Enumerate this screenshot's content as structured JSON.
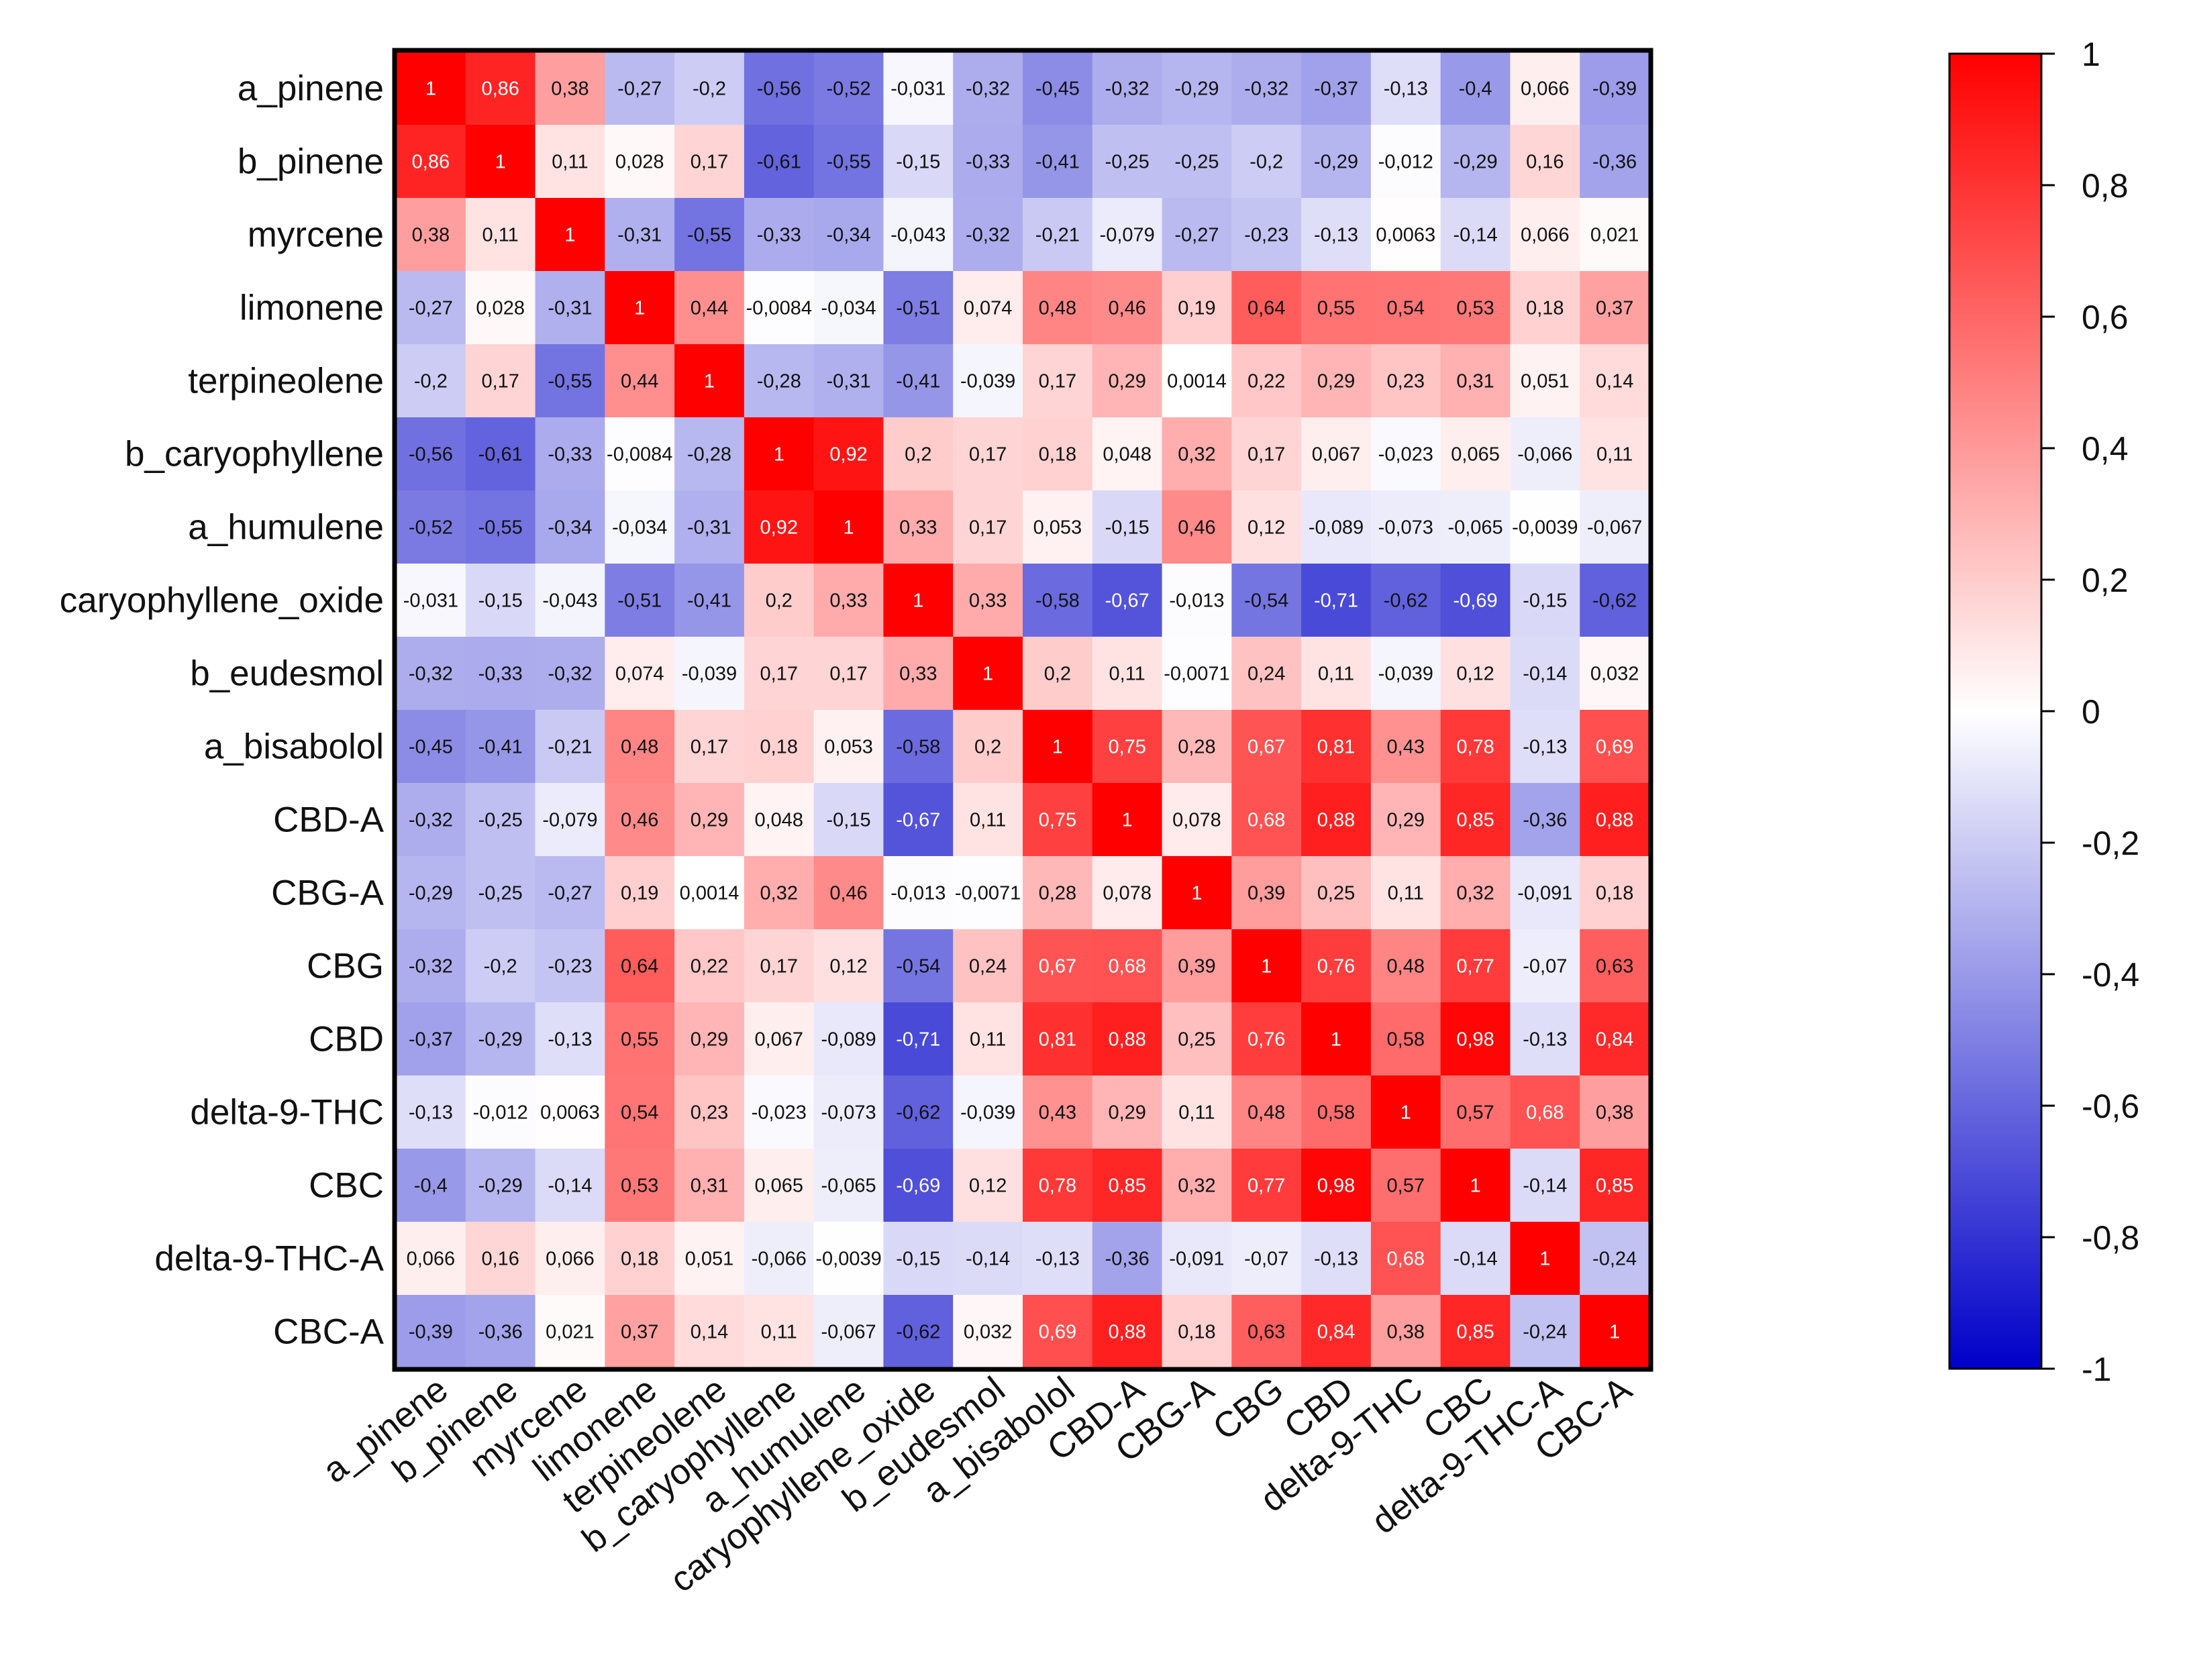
{
  "chart_data": {
    "type": "heatmap",
    "title": "",
    "variables": [
      "a_pinene",
      "b_pinene",
      "myrcene",
      "limonene",
      "terpineolene",
      "b_caryophyllene",
      "a_humulene",
      "caryophyllene_oxide",
      "b_eudesmol",
      "a_bisabolol",
      "CBD-A",
      "CBG-A",
      "CBG",
      "CBD",
      "delta-9-THC",
      "CBC",
      "delta-9-THC-A",
      "CBC-A"
    ],
    "matrix": [
      [
        "1",
        "0,86",
        "0,38",
        "-0,27",
        "-0,2",
        "-0,56",
        "-0,52",
        "-0,031",
        "-0,32",
        "-0,45",
        "-0,32",
        "-0,29",
        "-0,32",
        "-0,37",
        "-0,13",
        "-0,4",
        "0,066",
        "-0,39"
      ],
      [
        "0,86",
        "1",
        "0,11",
        "0,028",
        "0,17",
        "-0,61",
        "-0,55",
        "-0,15",
        "-0,33",
        "-0,41",
        "-0,25",
        "-0,25",
        "-0,2",
        "-0,29",
        "-0,012",
        "-0,29",
        "0,16",
        "-0,36"
      ],
      [
        "0,38",
        "0,11",
        "1",
        "-0,31",
        "-0,55",
        "-0,33",
        "-0,34",
        "-0,043",
        "-0,32",
        "-0,21",
        "-0,079",
        "-0,27",
        "-0,23",
        "-0,13",
        "0,0063",
        "-0,14",
        "0,066",
        "0,021"
      ],
      [
        "-0,27",
        "0,028",
        "-0,31",
        "1",
        "0,44",
        "-0,0084",
        "-0,034",
        "-0,51",
        "0,074",
        "0,48",
        "0,46",
        "0,19",
        "0,64",
        "0,55",
        "0,54",
        "0,53",
        "0,18",
        "0,37"
      ],
      [
        "-0,2",
        "0,17",
        "-0,55",
        "0,44",
        "1",
        "-0,28",
        "-0,31",
        "-0,41",
        "-0,039",
        "0,17",
        "0,29",
        "0,0014",
        "0,22",
        "0,29",
        "0,23",
        "0,31",
        "0,051",
        "0,14"
      ],
      [
        "-0,56",
        "-0,61",
        "-0,33",
        "-0,0084",
        "-0,28",
        "1",
        "0,92",
        "0,2",
        "0,17",
        "0,18",
        "0,048",
        "0,32",
        "0,17",
        "0,067",
        "-0,023",
        "0,065",
        "-0,066",
        "0,11"
      ],
      [
        "-0,52",
        "-0,55",
        "-0,34",
        "-0,034",
        "-0,31",
        "0,92",
        "1",
        "0,33",
        "0,17",
        "0,053",
        "-0,15",
        "0,46",
        "0,12",
        "-0,089",
        "-0,073",
        "-0,065",
        "-0,0039",
        "-0,067"
      ],
      [
        "-0,031",
        "-0,15",
        "-0,043",
        "-0,51",
        "-0,41",
        "0,2",
        "0,33",
        "1",
        "0,33",
        "-0,58",
        "-0,67",
        "-0,013",
        "-0,54",
        "-0,71",
        "-0,62",
        "-0,69",
        "-0,15",
        "-0,62"
      ],
      [
        "-0,32",
        "-0,33",
        "-0,32",
        "0,074",
        "-0,039",
        "0,17",
        "0,17",
        "0,33",
        "1",
        "0,2",
        "0,11",
        "-0,0071",
        "0,24",
        "0,11",
        "-0,039",
        "0,12",
        "-0,14",
        "0,032"
      ],
      [
        "-0,45",
        "-0,41",
        "-0,21",
        "0,48",
        "0,17",
        "0,18",
        "0,053",
        "-0,58",
        "0,2",
        "1",
        "0,75",
        "0,28",
        "0,67",
        "0,81",
        "0,43",
        "0,78",
        "-0,13",
        "0,69"
      ],
      [
        "-0,32",
        "-0,25",
        "-0,079",
        "0,46",
        "0,29",
        "0,048",
        "-0,15",
        "-0,67",
        "0,11",
        "0,75",
        "1",
        "0,078",
        "0,68",
        "0,88",
        "0,29",
        "0,85",
        "-0,36",
        "0,88"
      ],
      [
        "-0,29",
        "-0,25",
        "-0,27",
        "0,19",
        "0,0014",
        "0,32",
        "0,46",
        "-0,013",
        "-0,0071",
        "0,28",
        "0,078",
        "1",
        "0,39",
        "0,25",
        "0,11",
        "0,32",
        "-0,091",
        "0,18"
      ],
      [
        "-0,32",
        "-0,2",
        "-0,23",
        "0,64",
        "0,22",
        "0,17",
        "0,12",
        "-0,54",
        "0,24",
        "0,67",
        "0,68",
        "0,39",
        "1",
        "0,76",
        "0,48",
        "0,77",
        "-0,07",
        "0,63"
      ],
      [
        "-0,37",
        "-0,29",
        "-0,13",
        "0,55",
        "0,29",
        "0,067",
        "-0,089",
        "-0,71",
        "0,11",
        "0,81",
        "0,88",
        "0,25",
        "0,76",
        "1",
        "0,58",
        "0,98",
        "-0,13",
        "0,84"
      ],
      [
        "-0,13",
        "-0,012",
        "0,0063",
        "0,54",
        "0,23",
        "-0,023",
        "-0,073",
        "-0,62",
        "-0,039",
        "0,43",
        "0,29",
        "0,11",
        "0,48",
        "0,58",
        "1",
        "0,57",
        "0,68",
        "0,38"
      ],
      [
        "-0,4",
        "-0,29",
        "-0,14",
        "0,53",
        "0,31",
        "0,065",
        "-0,065",
        "-0,69",
        "0,12",
        "0,78",
        "0,85",
        "0,32",
        "0,77",
        "0,98",
        "0,57",
        "1",
        "-0,14",
        "0,85"
      ],
      [
        "0,066",
        "0,16",
        "0,066",
        "0,18",
        "0,051",
        "-0,066",
        "-0,0039",
        "-0,15",
        "-0,14",
        "-0,13",
        "-0,36",
        "-0,091",
        "-0,07",
        "-0,13",
        "0,68",
        "-0,14",
        "1",
        "-0,24"
      ],
      [
        "-0,39",
        "-0,36",
        "0,021",
        "0,37",
        "0,14",
        "0,11",
        "-0,067",
        "-0,62",
        "0,032",
        "0,69",
        "0,88",
        "0,18",
        "0,63",
        "0,84",
        "0,38",
        "0,85",
        "-0,24",
        "1"
      ]
    ],
    "color_scale": {
      "range": [
        -1,
        1
      ],
      "low_color": "#0000c8",
      "mid_color": "#ffffff",
      "high_color": "#ff0000",
      "ticks": [
        "1",
        "0,8",
        "0,6",
        "0,4",
        "0,2",
        "0",
        "-0,2",
        "-0,4",
        "-0,6",
        "-0,8",
        "-1"
      ]
    }
  }
}
